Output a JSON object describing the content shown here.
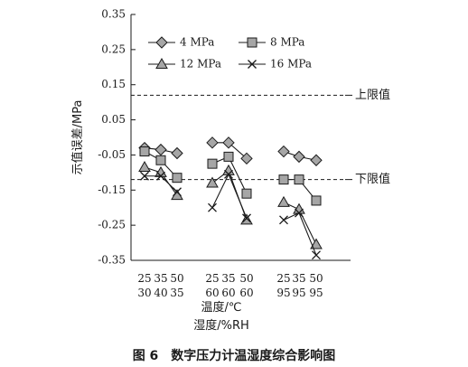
{
  "chart_data": {
    "type": "line",
    "title": "",
    "caption": "图 6　数字压力计温湿度综合影响图",
    "ylabel": "示值误差/MPa",
    "xlabel_temperature": "温度/℃",
    "xlabel_humidity": "湿度/%RH",
    "ylim": [
      -0.35,
      0.35
    ],
    "yticks": [
      "0.35",
      "0.25",
      "0.15",
      "0.05",
      "-0.05",
      "-0.15",
      "-0.25",
      "-0.35"
    ],
    "groups": [
      {
        "temps": [
          "25",
          "35",
          "50"
        ],
        "humidity": [
          "30",
          "40",
          "35"
        ]
      },
      {
        "temps": [
          "25",
          "35",
          "50"
        ],
        "humidity": [
          "60",
          "60",
          "60"
        ]
      },
      {
        "temps": [
          "25",
          "35",
          "50"
        ],
        "humidity": [
          "95",
          "95",
          "95"
        ]
      }
    ],
    "series": [
      {
        "name": "4 MPa",
        "marker": "diamond",
        "groups": [
          [
            -0.03,
            -0.035,
            -0.045
          ],
          [
            -0.015,
            -0.015,
            -0.06
          ],
          [
            -0.04,
            -0.055,
            -0.065
          ]
        ]
      },
      {
        "name": "8 MPa",
        "marker": "square",
        "groups": [
          [
            -0.04,
            -0.065,
            -0.115
          ],
          [
            -0.075,
            -0.055,
            -0.16
          ],
          [
            -0.12,
            -0.12,
            -0.18
          ]
        ]
      },
      {
        "name": "12 MPa",
        "marker": "triangle",
        "groups": [
          [
            -0.085,
            -0.1,
            -0.165
          ],
          [
            -0.13,
            -0.095,
            -0.235
          ],
          [
            -0.185,
            -0.205,
            -0.305
          ]
        ]
      },
      {
        "name": "16 MPa",
        "marker": "cross",
        "groups": [
          [
            -0.11,
            -0.11,
            -0.155
          ],
          [
            -0.2,
            -0.105,
            -0.23
          ],
          [
            -0.235,
            -0.215,
            -0.335
          ]
        ]
      }
    ],
    "reference_lines": [
      {
        "label": "上限值",
        "value": 0.12
      },
      {
        "label": "下限值",
        "value": -0.12
      }
    ],
    "legend_position": "top-left"
  }
}
